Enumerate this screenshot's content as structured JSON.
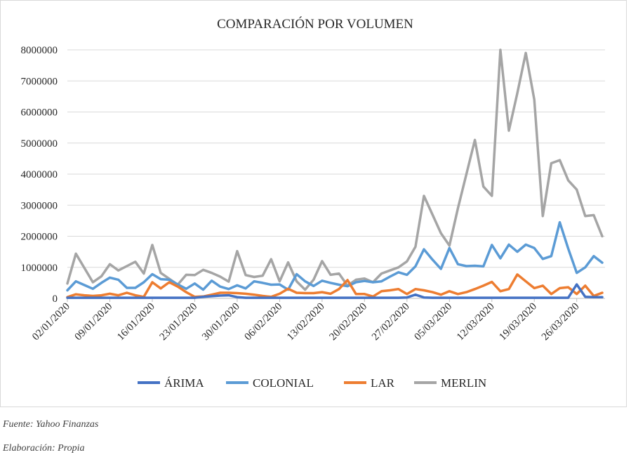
{
  "chart_data": {
    "type": "line",
    "title": "COMPARACIÓN POR VOLUMEN",
    "xlabel": "",
    "ylabel": "",
    "ylim": [
      0,
      8000000
    ],
    "yticks": [
      0,
      1000000,
      2000000,
      3000000,
      4000000,
      5000000,
      6000000,
      7000000,
      8000000
    ],
    "grid": "horizontal",
    "legend": "bottom",
    "x_tick_labels": [
      "02/01/2020",
      "09/01/2020",
      "16/01/2020",
      "23/01/2020",
      "30/01/2020",
      "06/02/2020",
      "13/02/2020",
      "20/02/2020",
      "27/02/2020",
      "05/03/2020",
      "12/03/2020",
      "19/03/2020",
      "26/03/2020"
    ],
    "x": [
      "02/01/2020",
      "03/01/2020",
      "06/01/2020",
      "07/01/2020",
      "08/01/2020",
      "09/01/2020",
      "10/01/2020",
      "13/01/2020",
      "14/01/2020",
      "15/01/2020",
      "16/01/2020",
      "17/01/2020",
      "20/01/2020",
      "21/01/2020",
      "22/01/2020",
      "23/01/2020",
      "24/01/2020",
      "27/01/2020",
      "28/01/2020",
      "29/01/2020",
      "30/01/2020",
      "31/01/2020",
      "03/02/2020",
      "04/02/2020",
      "05/02/2020",
      "06/02/2020",
      "07/02/2020",
      "10/02/2020",
      "11/02/2020",
      "12/02/2020",
      "13/02/2020",
      "14/02/2020",
      "17/02/2020",
      "18/02/2020",
      "19/02/2020",
      "20/02/2020",
      "21/02/2020",
      "24/02/2020",
      "25/02/2020",
      "26/02/2020",
      "27/02/2020",
      "28/02/2020",
      "02/03/2020",
      "03/03/2020",
      "04/03/2020",
      "05/03/2020",
      "06/03/2020",
      "09/03/2020",
      "10/03/2020",
      "11/03/2020",
      "12/03/2020",
      "13/03/2020",
      "16/03/2020",
      "17/03/2020",
      "18/03/2020",
      "19/03/2020",
      "20/03/2020",
      "23/03/2020",
      "24/03/2020",
      "25/03/2020",
      "26/03/2020",
      "27/03/2020",
      "30/03/2020",
      "31/03/2020"
    ],
    "series": [
      {
        "name": "ÁRIMA",
        "color": "#4472C4",
        "values": [
          20000,
          20000,
          20000,
          20000,
          20000,
          20000,
          20000,
          20000,
          20000,
          20000,
          20000,
          20000,
          20000,
          20000,
          20000,
          20000,
          50000,
          70000,
          90000,
          100000,
          40000,
          20000,
          20000,
          20000,
          20000,
          20000,
          20000,
          20000,
          20000,
          20000,
          20000,
          20000,
          20000,
          20000,
          20000,
          20000,
          20000,
          20000,
          20000,
          20000,
          30000,
          120000,
          30000,
          20000,
          20000,
          20000,
          20000,
          20000,
          20000,
          20000,
          20000,
          20000,
          20000,
          20000,
          20000,
          20000,
          20000,
          20000,
          20000,
          20000,
          450000,
          50000,
          40000,
          40000
        ]
      },
      {
        "name": "COLONIAL",
        "color": "#5B9BD5",
        "values": [
          260000,
          550000,
          430000,
          310000,
          500000,
          670000,
          600000,
          340000,
          340000,
          520000,
          780000,
          620000,
          600000,
          450000,
          310000,
          480000,
          280000,
          570000,
          380000,
          300000,
          420000,
          320000,
          550000,
          500000,
          440000,
          450000,
          280000,
          780000,
          550000,
          400000,
          570000,
          500000,
          440000,
          390000,
          520000,
          560000,
          520000,
          550000,
          700000,
          840000,
          760000,
          1030000,
          1580000,
          1250000,
          950000,
          1620000,
          1100000,
          1040000,
          1050000,
          1030000,
          1720000,
          1290000,
          1730000,
          1500000,
          1730000,
          1620000,
          1270000,
          1360000,
          2450000,
          1600000,
          820000,
          1000000,
          1360000,
          1150000
        ]
      },
      {
        "name": "LAR",
        "color": "#ED7D31",
        "values": [
          40000,
          130000,
          100000,
          80000,
          100000,
          150000,
          100000,
          180000,
          100000,
          50000,
          520000,
          320000,
          520000,
          380000,
          200000,
          50000,
          60000,
          120000,
          180000,
          180000,
          170000,
          150000,
          120000,
          80000,
          50000,
          150000,
          310000,
          180000,
          170000,
          170000,
          200000,
          150000,
          300000,
          590000,
          140000,
          140000,
          60000,
          230000,
          260000,
          300000,
          140000,
          300000,
          260000,
          200000,
          120000,
          230000,
          140000,
          200000,
          300000,
          410000,
          530000,
          230000,
          300000,
          770000,
          550000,
          330000,
          410000,
          140000,
          330000,
          360000,
          140000,
          410000,
          80000,
          180000
        ]
      },
      {
        "name": "MERLIN",
        "color": "#A5A5A5",
        "values": [
          480000,
          1440000,
          980000,
          520000,
          710000,
          1100000,
          900000,
          1040000,
          1180000,
          800000,
          1720000,
          820000,
          630000,
          440000,
          760000,
          750000,
          920000,
          820000,
          700000,
          540000,
          1520000,
          750000,
          690000,
          730000,
          1260000,
          550000,
          1160000,
          550000,
          280000,
          600000,
          1200000,
          760000,
          800000,
          410000,
          600000,
          640000,
          520000,
          800000,
          900000,
          1000000,
          1190000,
          1660000,
          3300000,
          2700000,
          2100000,
          1700000,
          2900000,
          4000000,
          5100000,
          3600000,
          3300000,
          8000000,
          5400000,
          6600000,
          7900000,
          6400000,
          2650000,
          4350000,
          4450000,
          3800000,
          3500000,
          2650000,
          2680000,
          2000000
        ]
      }
    ]
  },
  "footer": {
    "source": "Fuente: Yahoo Finanzas",
    "elaboration": "Elaboración: Propia"
  }
}
